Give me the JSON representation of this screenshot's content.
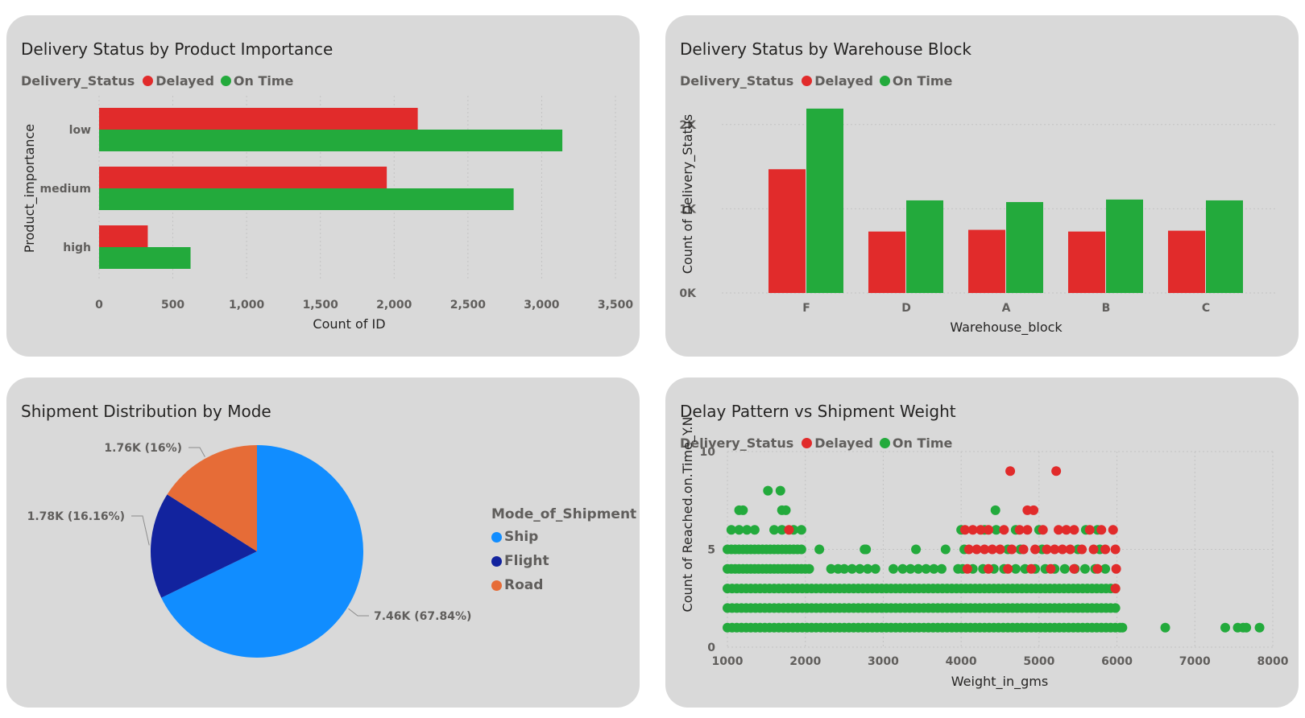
{
  "colors": {
    "delayed": "#e12b2b",
    "on_time": "#23aa3c",
    "ship": "#118dff",
    "flight": "#12239e",
    "road": "#e66c37"
  },
  "legend": {
    "title": "Delivery_Status",
    "delayed": "Delayed",
    "on_time": "On Time"
  },
  "chart_data": [
    {
      "type": "bar",
      "orientation": "horizontal",
      "title": "Delivery Status by Product Importance",
      "categories": [
        "low",
        "medium",
        "high"
      ],
      "series": [
        {
          "name": "Delayed",
          "values": [
            2160,
            1950,
            330
          ]
        },
        {
          "name": "On Time",
          "values": [
            3140,
            2810,
            620
          ]
        }
      ],
      "xlabel": "Count of ID",
      "ylabel": "Product_importance",
      "xlim": [
        0,
        3500
      ],
      "xticks": [
        "0",
        "500",
        "1,000",
        "1,500",
        "2,000",
        "2,500",
        "3,000",
        "3,500"
      ],
      "grid": true,
      "legend_position": "top-left"
    },
    {
      "type": "bar",
      "title": "Delivery Status by Warehouse Block",
      "categories": [
        "F",
        "D",
        "A",
        "B",
        "C"
      ],
      "series": [
        {
          "name": "Delayed",
          "values": [
            1470,
            730,
            750,
            730,
            740
          ]
        },
        {
          "name": "On Time",
          "values": [
            2190,
            1100,
            1080,
            1110,
            1100
          ]
        }
      ],
      "xlabel": "Warehouse_block",
      "ylabel": "Count of Delivery_Status",
      "ylim": [
        0,
        2400
      ],
      "yticks": [
        "0K",
        "1K",
        "2K"
      ],
      "grid": true,
      "legend_position": "top-left"
    },
    {
      "type": "pie",
      "title": "Shipment Distribution by Mode",
      "legend_title": "Mode_of_Shipment",
      "slices": [
        {
          "name": "Ship",
          "value": 7460,
          "label": "7.46K (67.84%)"
        },
        {
          "name": "Flight",
          "value": 1780,
          "label": "1.78K (16.16%)"
        },
        {
          "name": "Road",
          "value": 1760,
          "label": "1.76K (16%)"
        }
      ],
      "legend_position": "right"
    },
    {
      "type": "scatter",
      "title": "Delay Pattern vs Shipment Weight",
      "xlabel": "Weight_in_gms",
      "ylabel": "Count of Reached.on.Time_Y.N",
      "xlim": [
        1000,
        8000
      ],
      "ylim": [
        0,
        10
      ],
      "xticks": [
        "1000",
        "2000",
        "3000",
        "4000",
        "5000",
        "6000",
        "7000",
        "8000"
      ],
      "yticks": [
        "0",
        "5",
        "10"
      ],
      "grid": true,
      "legend_position": "top-left",
      "series": [
        {
          "name": "Delayed",
          "points": [
            [
              4630,
              9
            ],
            [
              5220,
              9
            ],
            [
              4850,
              7
            ],
            [
              4930,
              7
            ],
            [
              1790,
              6
            ],
            [
              4050,
              6
            ],
            [
              4150,
              6
            ],
            [
              4250,
              6
            ],
            [
              4350,
              6
            ],
            [
              4550,
              6
            ],
            [
              4750,
              6
            ],
            [
              4850,
              6
            ],
            [
              5050,
              6
            ],
            [
              5250,
              6
            ],
            [
              5350,
              6
            ],
            [
              5450,
              6
            ],
            [
              5650,
              6
            ],
            [
              5800,
              6
            ],
            [
              5950,
              6
            ],
            [
              4100,
              5
            ],
            [
              4200,
              5
            ],
            [
              4300,
              5
            ],
            [
              4400,
              5
            ],
            [
              4500,
              5
            ],
            [
              4650,
              5
            ],
            [
              4800,
              5
            ],
            [
              4950,
              5
            ],
            [
              5100,
              5
            ],
            [
              5200,
              5
            ],
            [
              5300,
              5
            ],
            [
              5400,
              5
            ],
            [
              5550,
              5
            ],
            [
              5700,
              5
            ],
            [
              5850,
              5
            ],
            [
              5980,
              5
            ],
            [
              4080,
              4
            ],
            [
              4350,
              4
            ],
            [
              4600,
              4
            ],
            [
              4900,
              4
            ],
            [
              5150,
              4
            ],
            [
              5450,
              4
            ],
            [
              5750,
              4
            ],
            [
              5990,
              4
            ],
            [
              5980,
              3
            ]
          ]
        },
        {
          "name": "On Time",
          "points": [
            [
              1520,
              8
            ],
            [
              1680,
              8
            ],
            [
              1150,
              7
            ],
            [
              1200,
              7
            ],
            [
              1700,
              7
            ],
            [
              1750,
              7
            ],
            [
              4440,
              7
            ],
            [
              1050,
              6
            ],
            [
              1150,
              6
            ],
            [
              1250,
              6
            ],
            [
              1350,
              6
            ],
            [
              1600,
              6
            ],
            [
              1700,
              6
            ],
            [
              1850,
              6
            ],
            [
              1950,
              6
            ],
            [
              4000,
              6
            ],
            [
              4300,
              6
            ],
            [
              4450,
              6
            ],
            [
              4700,
              6
            ],
            [
              5000,
              6
            ],
            [
              5600,
              6
            ],
            [
              5750,
              6
            ],
            [
              1000,
              5
            ],
            [
              1050,
              5
            ],
            [
              1100,
              5
            ],
            [
              1150,
              5
            ],
            [
              1200,
              5
            ],
            [
              1250,
              5
            ],
            [
              1300,
              5
            ],
            [
              1350,
              5
            ],
            [
              1400,
              5
            ],
            [
              1450,
              5
            ],
            [
              1500,
              5
            ],
            [
              1550,
              5
            ],
            [
              1600,
              5
            ],
            [
              1650,
              5
            ],
            [
              1700,
              5
            ],
            [
              1750,
              5
            ],
            [
              1800,
              5
            ],
            [
              1850,
              5
            ],
            [
              1900,
              5
            ],
            [
              1950,
              5
            ],
            [
              2180,
              5
            ],
            [
              2760,
              5
            ],
            [
              2780,
              5
            ],
            [
              3420,
              5
            ],
            [
              3800,
              5
            ],
            [
              4040,
              5
            ],
            [
              4600,
              5
            ],
            [
              4760,
              5
            ],
            [
              5040,
              5
            ],
            [
              5500,
              5
            ],
            [
              5780,
              5
            ],
            [
              1000,
              4
            ],
            [
              1050,
              4
            ],
            [
              1100,
              4
            ],
            [
              1150,
              4
            ],
            [
              1200,
              4
            ],
            [
              1250,
              4
            ],
            [
              1300,
              4
            ],
            [
              1350,
              4
            ],
            [
              1400,
              4
            ],
            [
              1450,
              4
            ],
            [
              1500,
              4
            ],
            [
              1550,
              4
            ],
            [
              1600,
              4
            ],
            [
              1650,
              4
            ],
            [
              1700,
              4
            ],
            [
              1750,
              4
            ],
            [
              1800,
              4
            ],
            [
              1850,
              4
            ],
            [
              1900,
              4
            ],
            [
              1950,
              4
            ],
            [
              2000,
              4
            ],
            [
              2050,
              4
            ],
            [
              2330,
              4
            ],
            [
              2420,
              4
            ],
            [
              2500,
              4
            ],
            [
              2600,
              4
            ],
            [
              2700,
              4
            ],
            [
              2800,
              4
            ],
            [
              2900,
              4
            ],
            [
              3130,
              4
            ],
            [
              3250,
              4
            ],
            [
              3350,
              4
            ],
            [
              3450,
              4
            ],
            [
              3550,
              4
            ],
            [
              3650,
              4
            ],
            [
              3750,
              4
            ],
            [
              3960,
              4
            ],
            [
              4020,
              4
            ],
            [
              4150,
              4
            ],
            [
              4280,
              4
            ],
            [
              4420,
              4
            ],
            [
              4550,
              4
            ],
            [
              4700,
              4
            ],
            [
              4820,
              4
            ],
            [
              4950,
              4
            ],
            [
              5080,
              4
            ],
            [
              5200,
              4
            ],
            [
              5330,
              4
            ],
            [
              5460,
              4
            ],
            [
              5590,
              4
            ],
            [
              5720,
              4
            ],
            [
              5850,
              4
            ],
            [
              6620,
              1
            ],
            [
              7390,
              1
            ],
            [
              7550,
              1
            ],
            [
              7620,
              1
            ],
            [
              7660,
              1
            ],
            [
              7830,
              1
            ],
            [
              6070,
              1
            ]
          ],
          "bands": [
            {
              "y": 3,
              "x_range": [
                1000,
                6000
              ]
            },
            {
              "y": 2,
              "x_range": [
                1000,
                6000
              ]
            },
            {
              "y": 1,
              "x_range": [
                1000,
                6050
              ]
            }
          ]
        }
      ]
    }
  ]
}
